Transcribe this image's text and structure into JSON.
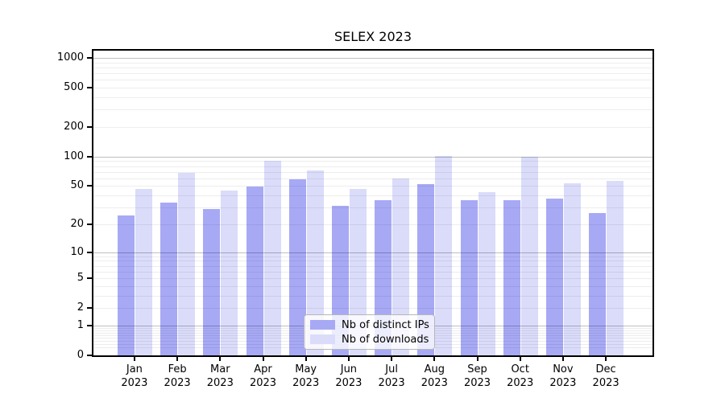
{
  "title": "SELEX 2023",
  "legend": {
    "items": [
      {
        "label": "Nb of distinct IPs",
        "color": "#a7a9f5"
      },
      {
        "label": "Nb of downloads",
        "color": "#dadcfa"
      }
    ]
  },
  "y_axis": {
    "tick_labels": [
      "1000",
      "500",
      "200",
      "100",
      "50",
      "20",
      "10",
      "5",
      "2",
      "1",
      "0"
    ]
  },
  "x_axis": {
    "months": [
      "Jan",
      "Feb",
      "Mar",
      "Apr",
      "May",
      "Jun",
      "Jul",
      "Aug",
      "Sep",
      "Oct",
      "Nov",
      "Dec"
    ],
    "year": "2023"
  },
  "chart_data": {
    "type": "bar",
    "title": "SELEX 2023",
    "categories": [
      "Jan 2023",
      "Feb 2023",
      "Mar 2023",
      "Apr 2023",
      "May 2023",
      "Jun 2023",
      "Jul 2023",
      "Aug 2023",
      "Sep 2023",
      "Oct 2023",
      "Nov 2023",
      "Dec 2023"
    ],
    "series": [
      {
        "name": "Nb of distinct IPs",
        "color": "#a7a9f5",
        "values": [
          25,
          34,
          29,
          49,
          59,
          31,
          36,
          52,
          36,
          36,
          37,
          26
        ]
      },
      {
        "name": "Nb of downloads",
        "color": "#dadcfa",
        "values": [
          47,
          68,
          45,
          90,
          72,
          47,
          60,
          102,
          43,
          99,
          53,
          57
        ]
      }
    ],
    "yscale": "symlog",
    "y_ticks": [
      1000,
      500,
      200,
      100,
      50,
      20,
      10,
      5,
      2,
      1,
      0
    ],
    "ylim": [
      0,
      1250
    ],
    "grid": true,
    "legend_position": "lower center"
  }
}
